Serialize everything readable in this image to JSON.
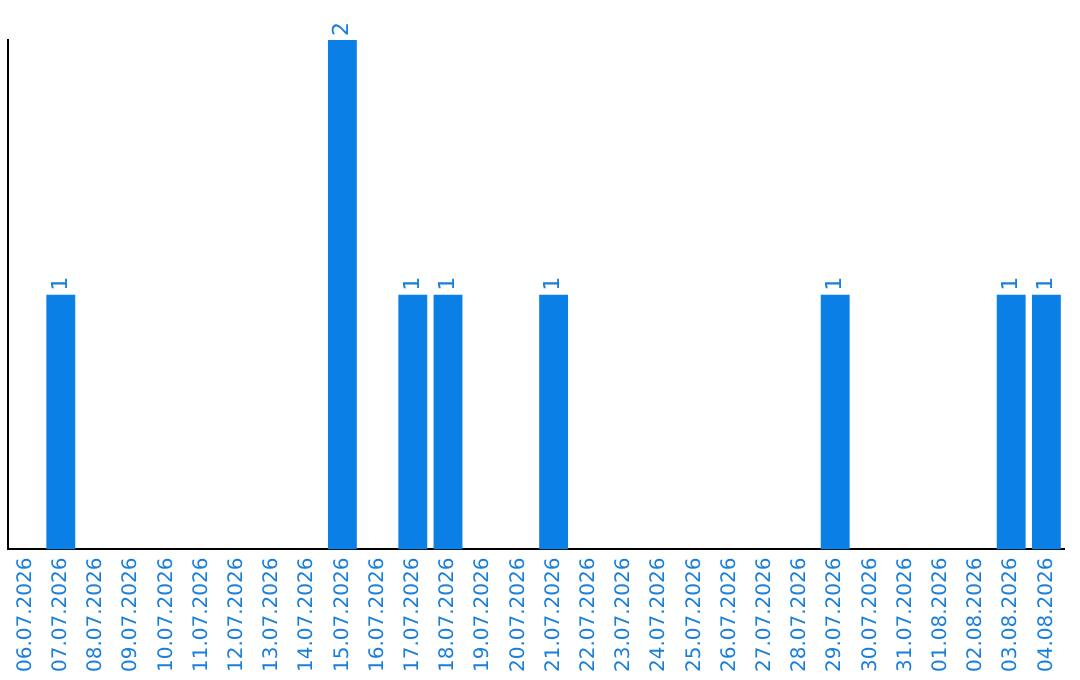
{
  "chart_data": {
    "type": "bar",
    "categories": [
      "06.07.2026",
      "07.07.2026",
      "08.07.2026",
      "09.07.2026",
      "10.07.2026",
      "11.07.2026",
      "12.07.2026",
      "13.07.2026",
      "14.07.2026",
      "15.07.2026",
      "16.07.2026",
      "17.07.2026",
      "18.07.2026",
      "19.07.2026",
      "20.07.2026",
      "21.07.2026",
      "22.07.2026",
      "23.07.2026",
      "24.07.2026",
      "25.07.2026",
      "26.07.2026",
      "27.07.2026",
      "28.07.2026",
      "29.07.2026",
      "30.07.2026",
      "31.07.2026",
      "01.08.2026",
      "02.08.2026",
      "03.08.2026",
      "04.08.2026"
    ],
    "values": [
      0,
      1,
      0,
      0,
      0,
      0,
      0,
      0,
      0,
      2,
      0,
      1,
      1,
      0,
      0,
      1,
      0,
      0,
      0,
      0,
      0,
      0,
      0,
      1,
      0,
      0,
      0,
      0,
      1,
      1
    ],
    "value_labels": [
      null,
      "1",
      null,
      null,
      null,
      null,
      null,
      null,
      null,
      "2",
      null,
      "1",
      "1",
      null,
      null,
      "1",
      null,
      null,
      null,
      null,
      null,
      null,
      null,
      "1",
      null,
      null,
      null,
      null,
      "1",
      "1"
    ],
    "color": "#0a7fe6",
    "ylim": [
      0,
      2
    ],
    "tick_labels": "x",
    "grid": false,
    "legend": false
  }
}
